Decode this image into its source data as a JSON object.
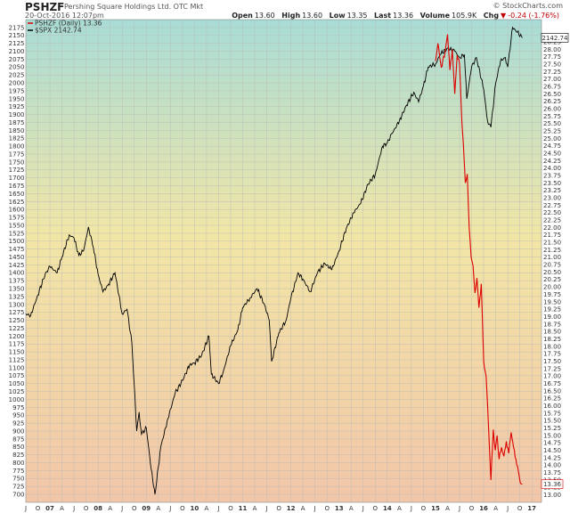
{
  "header": {
    "symbol": "PSHZF",
    "company": "Pershing Square Holdings Ltd.  OTC Mkt",
    "datetime": "20-Oct-2016 12:07pm",
    "copyright": "© StockCharts.com",
    "open_label": "Open",
    "open": "13.60",
    "high_label": "High",
    "high": "13.60",
    "low_label": "Low",
    "low": "13.35",
    "last_label": "Last",
    "last": "13.36",
    "volume_label": "Volume",
    "volume": "105.9K",
    "chg_label": "Chg",
    "chg": "-0.24 (-1.76%)",
    "chg_icon": "down-triangle-icon"
  },
  "legend": {
    "pshzf": "PSHZF (Daily) 13.36",
    "spx": "$SPX 2142.74"
  },
  "badges": {
    "spx_last": "2142.74",
    "pshzf_last": "13.36"
  },
  "colors": {
    "pshzf": "#dd0000",
    "spx": "#000000",
    "grid": "#b8b8b8"
  },
  "chart_data": {
    "type": "line",
    "background": "gradient: teal (top) to yellow to peach (bottom)",
    "grid": true,
    "legend_placement": "top-left",
    "left_axis": {
      "ylim": [
        675,
        2200
      ],
      "ticks": [
        700,
        725,
        750,
        775,
        800,
        825,
        850,
        875,
        900,
        925,
        950,
        975,
        1000,
        1025,
        1050,
        1075,
        1100,
        1125,
        1150,
        1175,
        1200,
        1225,
        1250,
        1275,
        1300,
        1325,
        1350,
        1375,
        1400,
        1425,
        1450,
        1475,
        1500,
        1525,
        1550,
        1575,
        1600,
        1625,
        1650,
        1675,
        1700,
        1725,
        1750,
        1775,
        1800,
        1825,
        1850,
        1875,
        1900,
        1925,
        1950,
        1975,
        2000,
        2025,
        2050,
        2075,
        2100,
        2125,
        2150,
        2175
      ]
    },
    "right_axis": {
      "ylim": [
        12.75,
        29.0
      ],
      "ticks": [
        "13.00",
        "13.25",
        "13.50",
        "13.75",
        "14.00",
        "14.25",
        "14.50",
        "14.75",
        "15.00",
        "15.25",
        "15.50",
        "15.75",
        "16.00",
        "16.25",
        "16.50",
        "16.75",
        "17.00",
        "17.25",
        "17.50",
        "17.75",
        "18.00",
        "18.25",
        "18.50",
        "18.75",
        "19.00",
        "19.25",
        "19.50",
        "19.75",
        "20.00",
        "20.25",
        "20.50",
        "20.75",
        "21.00",
        "21.25",
        "21.50",
        "21.75",
        "22.00",
        "22.25",
        "22.50",
        "22.75",
        "23.00",
        "23.25",
        "23.50",
        "23.75",
        "24.00",
        "24.25",
        "24.50",
        "24.75",
        "25.00",
        "25.25",
        "25.50",
        "25.75",
        "26.00",
        "26.25",
        "26.50",
        "26.75",
        "27.00",
        "27.25",
        "27.50",
        "27.75",
        "28.00",
        "28.25"
      ]
    },
    "x_range": [
      2006.5,
      2017.2
    ],
    "x_ticks": [
      {
        "label": "J",
        "x": 2006.5
      },
      {
        "label": "O",
        "x": 2006.75
      },
      {
        "label": "07",
        "x": 2007.0
      },
      {
        "label": "A",
        "x": 2007.25
      },
      {
        "label": "J",
        "x": 2007.5
      },
      {
        "label": "O",
        "x": 2007.75
      },
      {
        "label": "08",
        "x": 2008.0
      },
      {
        "label": "A",
        "x": 2008.25
      },
      {
        "label": "J",
        "x": 2008.5
      },
      {
        "label": "O",
        "x": 2008.75
      },
      {
        "label": "09",
        "x": 2009.0
      },
      {
        "label": "A",
        "x": 2009.25
      },
      {
        "label": "J",
        "x": 2009.5
      },
      {
        "label": "O",
        "x": 2009.75
      },
      {
        "label": "10",
        "x": 2010.0
      },
      {
        "label": "A",
        "x": 2010.25
      },
      {
        "label": "J",
        "x": 2010.5
      },
      {
        "label": "O",
        "x": 2010.75
      },
      {
        "label": "11",
        "x": 2011.0
      },
      {
        "label": "A",
        "x": 2011.25
      },
      {
        "label": "J",
        "x": 2011.5
      },
      {
        "label": "O",
        "x": 2011.75
      },
      {
        "label": "12",
        "x": 2012.0
      },
      {
        "label": "A",
        "x": 2012.25
      },
      {
        "label": "J",
        "x": 2012.5
      },
      {
        "label": "O",
        "x": 2012.75
      },
      {
        "label": "13",
        "x": 2013.0
      },
      {
        "label": "A",
        "x": 2013.25
      },
      {
        "label": "J",
        "x": 2013.5
      },
      {
        "label": "O",
        "x": 2013.75
      },
      {
        "label": "14",
        "x": 2014.0
      },
      {
        "label": "A",
        "x": 2014.25
      },
      {
        "label": "J",
        "x": 2014.5
      },
      {
        "label": "O",
        "x": 2014.75
      },
      {
        "label": "15",
        "x": 2015.0
      },
      {
        "label": "A",
        "x": 2015.25
      },
      {
        "label": "J",
        "x": 2015.5
      },
      {
        "label": "O",
        "x": 2015.75
      },
      {
        "label": "16",
        "x": 2016.0
      },
      {
        "label": "A",
        "x": 2016.25
      },
      {
        "label": "J",
        "x": 2016.5
      },
      {
        "label": "O",
        "x": 2016.75
      },
      {
        "label": "17",
        "x": 2017.0
      }
    ],
    "series": [
      {
        "name": "$SPX",
        "axis": "left",
        "x": [
          2006.5,
          2006.6,
          2006.75,
          2006.9,
          2007.0,
          2007.15,
          2007.25,
          2007.4,
          2007.5,
          2007.6,
          2007.7,
          2007.8,
          2007.9,
          2008.0,
          2008.1,
          2008.2,
          2008.35,
          2008.5,
          2008.6,
          2008.7,
          2008.8,
          2008.85,
          2008.9,
          2009.0,
          2009.1,
          2009.18,
          2009.3,
          2009.45,
          2009.6,
          2009.75,
          2009.9,
          2010.0,
          2010.15,
          2010.3,
          2010.35,
          2010.5,
          2010.6,
          2010.75,
          2010.9,
          2011.0,
          2011.15,
          2011.3,
          2011.45,
          2011.55,
          2011.6,
          2011.75,
          2011.9,
          2012.0,
          2012.15,
          2012.25,
          2012.4,
          2012.55,
          2012.7,
          2012.85,
          2013.0,
          2013.15,
          2013.3,
          2013.45,
          2013.6,
          2013.75,
          2013.9,
          2014.0,
          2014.1,
          2014.25,
          2014.4,
          2014.55,
          2014.65,
          2014.75,
          2014.85,
          2015.0,
          2015.1,
          2015.25,
          2015.4,
          2015.5,
          2015.6,
          2015.65,
          2015.75,
          2015.85,
          2016.0,
          2016.08,
          2016.15,
          2016.25,
          2016.35,
          2016.45,
          2016.5,
          2016.6,
          2016.7,
          2016.8
        ],
        "values": [
          1270,
          1265,
          1330,
          1395,
          1420,
          1400,
          1450,
          1520,
          1510,
          1455,
          1470,
          1545,
          1480,
          1395,
          1340,
          1360,
          1400,
          1270,
          1285,
          1180,
          900,
          960,
          890,
          910,
          780,
          700,
          850,
          940,
          1020,
          1060,
          1110,
          1115,
          1140,
          1200,
          1080,
          1050,
          1090,
          1170,
          1220,
          1290,
          1320,
          1350,
          1300,
          1250,
          1120,
          1210,
          1250,
          1320,
          1400,
          1380,
          1340,
          1400,
          1430,
          1410,
          1470,
          1540,
          1590,
          1620,
          1680,
          1710,
          1800,
          1810,
          1840,
          1880,
          1930,
          1970,
          1940,
          1990,
          2050,
          2060,
          2090,
          2110,
          2100,
          2080,
          2090,
          1950,
          2050,
          2080,
          1980,
          1880,
          1860,
          2000,
          2070,
          2080,
          2050,
          2175,
          2160,
          2142.74
        ]
      },
      {
        "name": "PSHZF",
        "axis": "right",
        "x": [
          2015.0,
          2015.05,
          2015.12,
          2015.2,
          2015.25,
          2015.3,
          2015.35,
          2015.4,
          2015.45,
          2015.5,
          2015.55,
          2015.58,
          2015.62,
          2015.66,
          2015.7,
          2015.74,
          2015.78,
          2015.82,
          2015.86,
          2015.9,
          2015.95,
          2016.0,
          2016.05,
          2016.1,
          2016.15,
          2016.2,
          2016.24,
          2016.28,
          2016.32,
          2016.37,
          2016.42,
          2016.47,
          2016.52,
          2016.57,
          2016.62,
          2016.67,
          2016.72,
          2016.76,
          2016.8
        ],
        "values": [
          27.6,
          28.2,
          27.4,
          27.9,
          28.5,
          27.3,
          28.0,
          26.5,
          27.8,
          27.5,
          25.5,
          24.8,
          23.5,
          23.8,
          22.0,
          21.0,
          20.7,
          19.8,
          20.3,
          19.3,
          20.1,
          17.5,
          17.0,
          15.3,
          13.5,
          15.2,
          14.5,
          15.0,
          14.2,
          14.6,
          14.3,
          14.8,
          14.4,
          15.1,
          14.6,
          14.2,
          13.8,
          13.4,
          13.36
        ]
      }
    ]
  }
}
